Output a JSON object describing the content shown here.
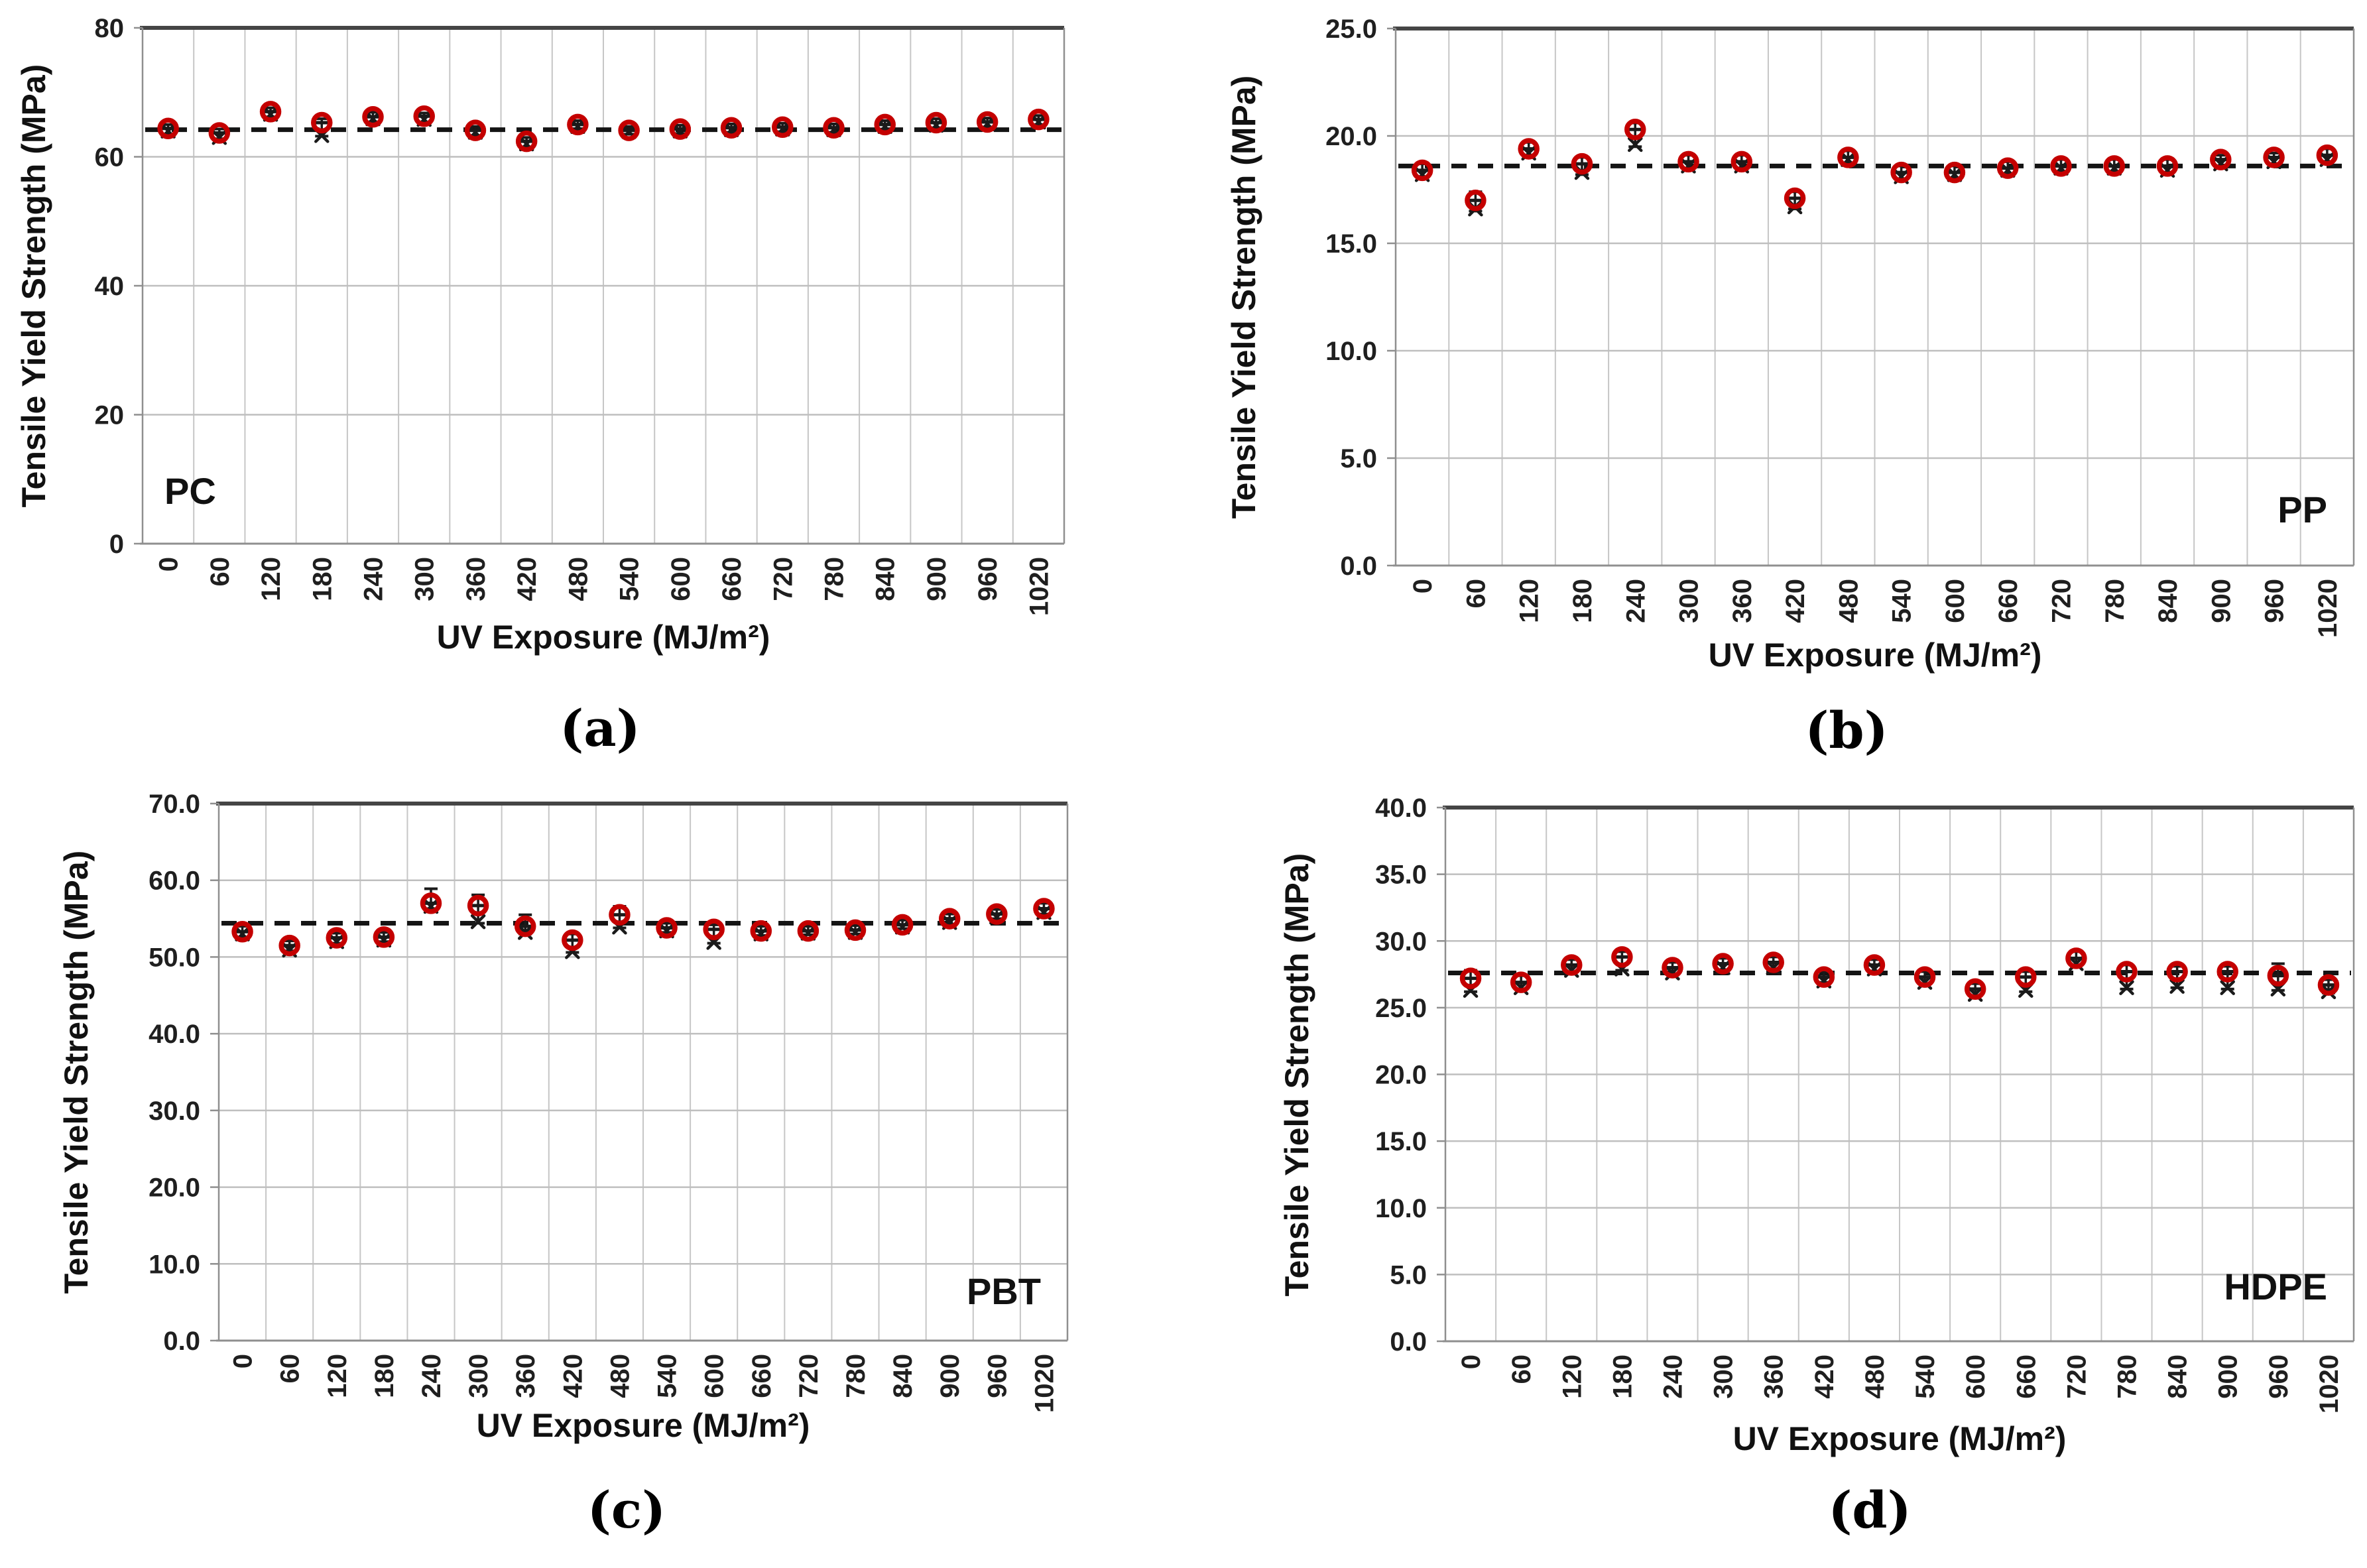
{
  "figure": {
    "y_axis_title": "Tensile Yield Strength (MPa)",
    "x_axis_title": "UV Exposure (MJ/m²)",
    "categories": [
      "0",
      "60",
      "120",
      "180",
      "240",
      "300",
      "360",
      "420",
      "480",
      "540",
      "600",
      "660",
      "720",
      "780",
      "840",
      "900",
      "960",
      "1020"
    ],
    "marker_color": "#c40000",
    "error_color": "#1a1a1a",
    "baseline_color": "#141414",
    "gridline_color": "#c6c6c6",
    "hgridline_color": "#bfbfbf",
    "top_border_color": "#454545",
    "axis_line_color": "#8f8f8f"
  },
  "chart_data": [
    {
      "id": "a",
      "type": "scatter",
      "material": "PC",
      "caption": "(a)",
      "ylabel": "Tensile Yield Strength (MPa)",
      "xlabel": "UV Exposure (MJ/m²)",
      "ylim": [
        0,
        80
      ],
      "ytick_values": [
        0,
        20,
        40,
        60,
        80
      ],
      "ytick_labels": [
        "0",
        "20",
        "40",
        "60",
        "80"
      ],
      "baseline": 64.2,
      "legend": "none",
      "grid": "on",
      "x": [
        0,
        60,
        120,
        180,
        240,
        300,
        360,
        420,
        480,
        540,
        600,
        660,
        720,
        780,
        840,
        900,
        960,
        1020
      ],
      "points": [
        [
          64.4,
          64.0,
          63.4,
          65.0
        ],
        [
          63.7,
          63.0,
          62.8,
          64.3
        ],
        [
          67.0,
          66.6,
          66.2,
          67.6
        ],
        [
          65.3,
          63.3,
          63.2,
          65.9
        ],
        [
          66.2,
          65.9,
          65.4,
          66.9
        ],
        [
          66.3,
          65.8,
          65.4,
          66.8
        ],
        [
          64.1,
          63.8,
          63.3,
          64.7
        ],
        [
          62.4,
          62.0,
          61.5,
          63.0
        ],
        [
          65.0,
          64.7,
          64.2,
          65.6
        ],
        [
          64.1,
          63.9,
          63.5,
          64.7
        ],
        [
          64.3,
          64.0,
          63.6,
          64.9
        ],
        [
          64.5,
          64.2,
          63.8,
          65.1
        ],
        [
          64.6,
          64.3,
          63.9,
          65.2
        ],
        [
          64.5,
          64.2,
          63.8,
          65.1
        ],
        [
          65.0,
          64.7,
          64.3,
          65.6
        ],
        [
          65.3,
          64.9,
          64.5,
          65.9
        ],
        [
          65.4,
          65.1,
          64.6,
          66.0
        ],
        [
          65.8,
          65.4,
          65.0,
          66.4
        ]
      ]
    },
    {
      "id": "b",
      "type": "scatter",
      "material": "PP",
      "caption": "(b)",
      "ylabel": "Tensile Yield Strength (MPa)",
      "xlabel": "UV Exposure (MJ/m²)",
      "ylim": [
        0,
        25
      ],
      "ytick_values": [
        0,
        5,
        10,
        15,
        20,
        25
      ],
      "ytick_labels": [
        "0.0",
        "5.0",
        "10.0",
        "15.0",
        "20.0",
        "25.0"
      ],
      "baseline": 18.6,
      "legend": "none",
      "grid": "on",
      "x": [
        0,
        60,
        120,
        180,
        240,
        300,
        360,
        420,
        480,
        540,
        600,
        660,
        720,
        780,
        840,
        900,
        960,
        1020
      ],
      "points": [
        [
          18.4,
          18.2,
          18.0,
          18.7
        ],
        [
          17.0,
          16.6,
          16.5,
          17.4
        ],
        [
          19.4,
          19.2,
          19.0,
          19.7
        ],
        [
          18.7,
          18.3,
          18.2,
          19.0
        ],
        [
          20.3,
          19.6,
          19.5,
          20.6
        ],
        [
          18.8,
          18.6,
          18.4,
          19.1
        ],
        [
          18.8,
          18.6,
          18.4,
          19.1
        ],
        [
          17.1,
          16.7,
          16.6,
          17.4
        ],
        [
          19.0,
          18.9,
          18.7,
          19.3
        ],
        [
          18.3,
          18.1,
          17.9,
          18.6
        ],
        [
          18.3,
          18.2,
          18.0,
          18.6
        ],
        [
          18.5,
          18.4,
          18.2,
          18.8
        ],
        [
          18.6,
          18.5,
          18.3,
          18.9
        ],
        [
          18.6,
          18.5,
          18.3,
          18.9
        ],
        [
          18.6,
          18.4,
          18.2,
          18.9
        ],
        [
          18.9,
          18.7,
          18.5,
          19.1
        ],
        [
          19.0,
          18.8,
          18.6,
          19.2
        ],
        [
          19.1,
          18.9,
          18.7,
          19.4
        ]
      ]
    },
    {
      "id": "c",
      "type": "scatter",
      "material": "PBT",
      "caption": "(c)",
      "ylabel": "Tensile Yield Strength (MPa)",
      "xlabel": "UV Exposure (MJ/m²)",
      "ylim": [
        0,
        70
      ],
      "ytick_values": [
        0,
        10,
        20,
        30,
        40,
        50,
        60,
        70
      ],
      "ytick_labels": [
        "0.0",
        "10.0",
        "20.0",
        "30.0",
        "40.0",
        "50.0",
        "60.0",
        "70.0"
      ],
      "baseline": 54.4,
      "legend": "none",
      "grid": "on",
      "x": [
        0,
        60,
        120,
        180,
        240,
        300,
        360,
        420,
        480,
        540,
        600,
        660,
        720,
        780,
        840,
        900,
        960,
        1020
      ],
      "points": [
        [
          53.3,
          53.0,
          52.6,
          54.0
        ],
        [
          51.5,
          50.9,
          50.8,
          52.1
        ],
        [
          52.5,
          52.0,
          51.8,
          53.1
        ],
        [
          52.6,
          52.2,
          52.0,
          53.2
        ],
        [
          57.0,
          56.6,
          56.3,
          58.9
        ],
        [
          56.7,
          54.6,
          54.4,
          58.1
        ],
        [
          54.0,
          53.2,
          53.0,
          55.5
        ],
        [
          52.2,
          50.7,
          50.6,
          53.0
        ],
        [
          55.5,
          53.9,
          53.8,
          56.6
        ],
        [
          53.8,
          53.4,
          53.2,
          54.4
        ],
        [
          53.6,
          51.9,
          51.8,
          54.2
        ],
        [
          53.4,
          53.0,
          52.8,
          54.0
        ],
        [
          53.4,
          53.1,
          52.9,
          54.0
        ],
        [
          53.5,
          53.2,
          53.0,
          54.1
        ],
        [
          54.2,
          53.9,
          53.7,
          54.8
        ],
        [
          55.0,
          54.5,
          54.3,
          55.6
        ],
        [
          55.6,
          55.2,
          55.0,
          56.2
        ],
        [
          56.3,
          55.8,
          55.6,
          57.0
        ]
      ]
    },
    {
      "id": "d",
      "type": "scatter",
      "material": "HDPE",
      "caption": "(d)",
      "ylabel": "Tensile Yield Strength (MPa)",
      "xlabel": "UV Exposure (MJ/m²)",
      "ylim": [
        0,
        40
      ],
      "ytick_values": [
        0,
        5,
        10,
        15,
        20,
        25,
        30,
        35,
        40
      ],
      "ytick_labels": [
        "0.0",
        "5.0",
        "10.0",
        "15.0",
        "20.0",
        "25.0",
        "30.0",
        "35.0",
        "40.0"
      ],
      "baseline": 27.6,
      "legend": "none",
      "grid": "on",
      "x": [
        0,
        60,
        120,
        180,
        240,
        300,
        360,
        420,
        480,
        540,
        600,
        660,
        720,
        780,
        840,
        900,
        960,
        1020
      ],
      "points": [
        [
          27.2,
          26.3,
          26.2,
          27.8
        ],
        [
          26.9,
          26.5,
          26.4,
          27.4
        ],
        [
          28.2,
          27.8,
          27.7,
          28.6
        ],
        [
          28.8,
          27.9,
          27.8,
          29.2
        ],
        [
          28.0,
          27.6,
          27.5,
          28.4
        ],
        [
          28.3,
          28.0,
          27.8,
          28.7
        ],
        [
          28.4,
          28.0,
          27.9,
          28.8
        ],
        [
          27.3,
          27.0,
          26.9,
          27.7
        ],
        [
          28.2,
          27.9,
          27.7,
          28.6
        ],
        [
          27.3,
          26.9,
          26.8,
          27.7
        ],
        [
          26.4,
          26.0,
          25.9,
          26.8
        ],
        [
          27.3,
          26.3,
          26.2,
          27.7
        ],
        [
          28.7,
          28.3,
          28.2,
          29.2
        ],
        [
          27.7,
          26.5,
          26.4,
          28.2
        ],
        [
          27.7,
          26.6,
          26.5,
          28.1
        ],
        [
          27.7,
          26.5,
          26.4,
          28.1
        ],
        [
          27.4,
          26.4,
          26.3,
          28.3
        ],
        [
          26.7,
          26.2,
          26.1,
          27.1
        ]
      ]
    }
  ]
}
